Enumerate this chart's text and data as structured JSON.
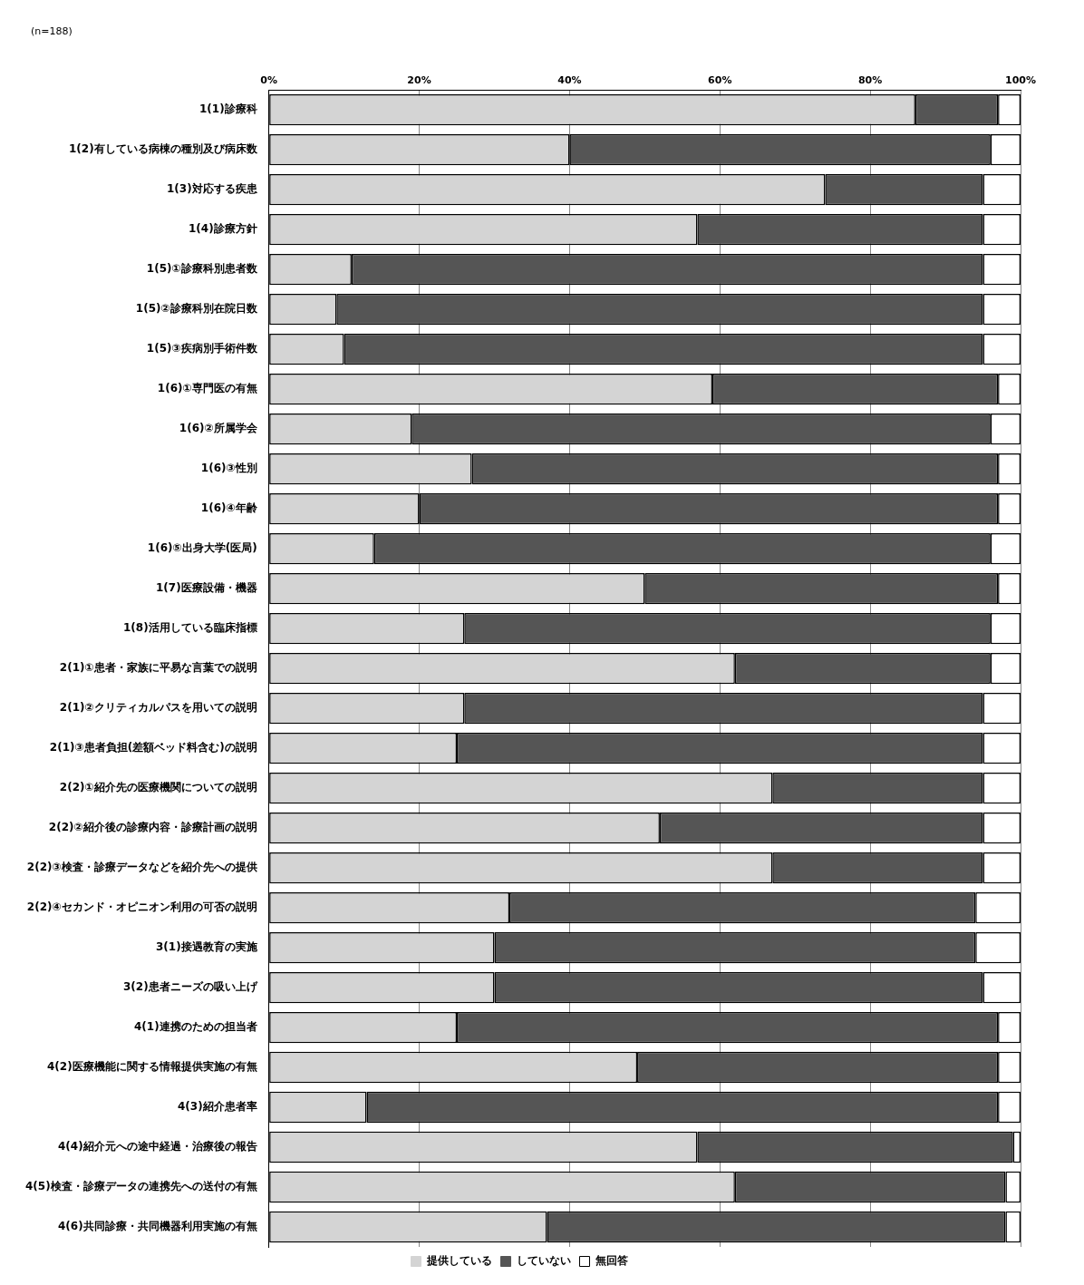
{
  "chart_data": {
    "type": "bar",
    "orientation": "horizontal",
    "stacked": true,
    "annotations": [
      "(n=188)"
    ],
    "categories": [
      "1(1)診療科",
      "1(2)有している病棟の種別及び病床数",
      "1(3)対応する疾患",
      "1(4)診療方針",
      "1(5)①診療科別患者数",
      "1(5)②診療科別在院日数",
      "1(5)③疾病別手術件数",
      "1(6)①専門医の有無",
      "1(6)②所属学会",
      "1(6)③性別",
      "1(6)④年齢",
      "1(6)⑤出身大学(医局)",
      "1(7)医療設備・機器",
      "1(8)活用している臨床指標",
      "2(1)①患者・家族に平易な言葉での説明",
      "2(1)②クリティカルパスを用いての説明",
      "2(1)③患者負担(差額ベッド料含む)の説明",
      "2(2)①紹介先の医療機関についての説明",
      "2(2)②紹介後の診療内容・診療計画の説明",
      "2(2)③検査・診療データなどを紹介先への提供",
      "2(2)④セカンド・オピニオン利用の可否の説明",
      "3(1)接遇教育の実施",
      "3(2)患者ニーズの吸い上げ",
      "4(1)連携のための担当者",
      "4(2)医療機能に関する情報提供実施の有無",
      "4(3)紹介患者率",
      "4(4)紹介元への途中経過・治療後の報告",
      "4(5)検査・診療データの連携先への送付の有無",
      "4(6)共同診療・共同機器利用実施の有無"
    ],
    "series": [
      {
        "name": "提供している",
        "color": "#d4d4d4",
        "values": [
          86,
          40,
          74,
          57,
          11,
          9,
          10,
          59,
          19,
          27,
          20,
          14,
          50,
          26,
          62,
          26,
          25,
          67,
          52,
          67,
          32,
          30,
          30,
          25,
          49,
          13,
          57,
          62,
          37
        ]
      },
      {
        "name": "していない",
        "color": "#555555",
        "values": [
          11,
          56,
          21,
          38,
          84,
          86,
          85,
          38,
          77,
          70,
          77,
          82,
          47,
          70,
          34,
          69,
          70,
          28,
          43,
          28,
          62,
          64,
          65,
          72,
          48,
          84,
          42,
          36,
          61
        ]
      },
      {
        "name": "無回答",
        "color": "#ffffff",
        "values": [
          3,
          4,
          5,
          5,
          5,
          5,
          5,
          3,
          4,
          3,
          3,
          4,
          3,
          4,
          4,
          5,
          5,
          5,
          5,
          5,
          6,
          6,
          5,
          3,
          3,
          3,
          1,
          2,
          2
        ]
      }
    ],
    "xlim": [
      0,
      100
    ],
    "xticks": [
      {
        "value": 0,
        "label": "0%"
      },
      {
        "value": 20,
        "label": "20%"
      },
      {
        "value": 40,
        "label": "40%"
      },
      {
        "value": 60,
        "label": "60%"
      },
      {
        "value": 80,
        "label": "80%"
      },
      {
        "value": 100,
        "label": "100%"
      }
    ],
    "grid": "x",
    "legend": "bottom"
  }
}
